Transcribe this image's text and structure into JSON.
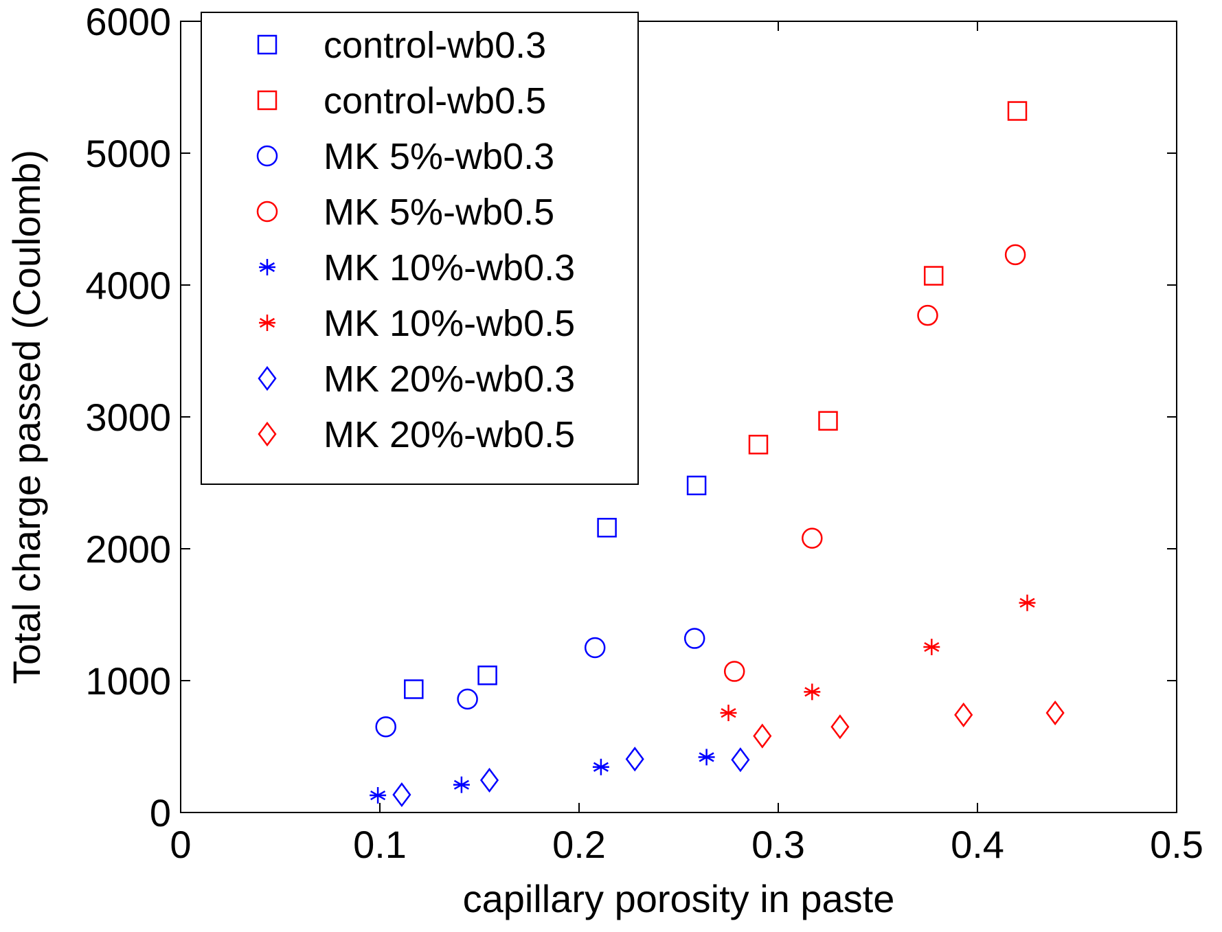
{
  "chart_data": {
    "type": "scatter",
    "title": "",
    "xlabel": "capillary porosity in paste",
    "ylabel": "Total charge passed (Coulomb)",
    "xlim": [
      0,
      0.5
    ],
    "ylim": [
      0,
      6000
    ],
    "xticks": [
      0,
      0.1,
      0.2,
      0.3,
      0.4,
      0.5
    ],
    "xtick_labels": [
      "0",
      "0.1",
      "0.2",
      "0.3",
      "0.4",
      "0.5"
    ],
    "yticks": [
      0,
      1000,
      2000,
      3000,
      4000,
      5000,
      6000
    ],
    "ytick_labels": [
      "0",
      "1000",
      "2000",
      "3000",
      "4000",
      "5000",
      "6000"
    ],
    "grid": false,
    "legend_position": "top-left",
    "series": [
      {
        "name": "control-wb0.3",
        "marker": "square",
        "color": "#0000ff",
        "points": [
          [
            0.117,
            935
          ],
          [
            0.154,
            1040
          ],
          [
            0.214,
            2160
          ],
          [
            0.259,
            2480
          ]
        ]
      },
      {
        "name": "control-wb0.5",
        "marker": "square",
        "color": "#ff0000",
        "points": [
          [
            0.29,
            2790
          ],
          [
            0.325,
            2970
          ],
          [
            0.378,
            4070
          ],
          [
            0.42,
            5320
          ]
        ]
      },
      {
        "name": "MK 5%-wb0.3",
        "marker": "circle",
        "color": "#0000ff",
        "points": [
          [
            0.103,
            650
          ],
          [
            0.144,
            860
          ],
          [
            0.208,
            1250
          ],
          [
            0.258,
            1320
          ]
        ]
      },
      {
        "name": "MK 5%-wb0.5",
        "marker": "circle",
        "color": "#ff0000",
        "points": [
          [
            0.278,
            1070
          ],
          [
            0.317,
            2080
          ],
          [
            0.375,
            3770
          ],
          [
            0.419,
            4230
          ]
        ]
      },
      {
        "name": "MK 10%-wb0.3",
        "marker": "star",
        "color": "#0000ff",
        "points": [
          [
            0.099,
            130
          ],
          [
            0.141,
            210
          ],
          [
            0.211,
            345
          ],
          [
            0.264,
            420
          ]
        ]
      },
      {
        "name": "MK 10%-wb0.5",
        "marker": "star",
        "color": "#ff0000",
        "points": [
          [
            0.275,
            755
          ],
          [
            0.317,
            915
          ],
          [
            0.377,
            1255
          ],
          [
            0.425,
            1590
          ]
        ]
      },
      {
        "name": "MK 20%-wb0.3",
        "marker": "diamond",
        "color": "#0000ff",
        "points": [
          [
            0.111,
            135
          ],
          [
            0.155,
            245
          ],
          [
            0.228,
            405
          ],
          [
            0.281,
            400
          ]
        ]
      },
      {
        "name": "MK 20%-wb0.5",
        "marker": "diamond",
        "color": "#ff0000",
        "points": [
          [
            0.292,
            580
          ],
          [
            0.331,
            650
          ],
          [
            0.393,
            740
          ],
          [
            0.439,
            755
          ]
        ]
      }
    ]
  }
}
